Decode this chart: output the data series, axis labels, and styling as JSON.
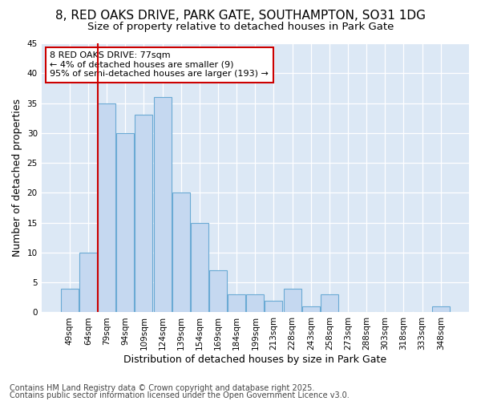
{
  "title_line1": "8, RED OAKS DRIVE, PARK GATE, SOUTHAMPTON, SO31 1DG",
  "title_line2": "Size of property relative to detached houses in Park Gate",
  "xlabel": "Distribution of detached houses by size in Park Gate",
  "ylabel": "Number of detached properties",
  "categories": [
    "49sqm",
    "64sqm",
    "79sqm",
    "94sqm",
    "109sqm",
    "124sqm",
    "139sqm",
    "154sqm",
    "169sqm",
    "184sqm",
    "199sqm",
    "213sqm",
    "228sqm",
    "243sqm",
    "258sqm",
    "273sqm",
    "288sqm",
    "303sqm",
    "318sqm",
    "333sqm",
    "348sqm"
  ],
  "values": [
    4,
    10,
    35,
    30,
    33,
    36,
    20,
    15,
    7,
    3,
    3,
    2,
    4,
    1,
    3,
    0,
    0,
    0,
    0,
    0,
    1
  ],
  "bar_color": "#c5d8f0",
  "bar_edge_color": "#6aaad4",
  "vline_x_index": 1.5,
  "vline_color": "#cc0000",
  "annotation_text": "8 RED OAKS DRIVE: 77sqm\n← 4% of detached houses are smaller (9)\n95% of semi-detached houses are larger (193) →",
  "annotation_box_color": "#ffffff",
  "annotation_box_edge": "#cc0000",
  "ylim": [
    0,
    45
  ],
  "yticks": [
    0,
    5,
    10,
    15,
    20,
    25,
    30,
    35,
    40,
    45
  ],
  "background_color": "#dce8f5",
  "fig_background": "#ffffff",
  "footer_line1": "Contains HM Land Registry data © Crown copyright and database right 2025.",
  "footer_line2": "Contains public sector information licensed under the Open Government Licence v3.0.",
  "title_fontsize": 11,
  "subtitle_fontsize": 9.5,
  "tick_fontsize": 7.5,
  "label_fontsize": 9,
  "footer_fontsize": 7,
  "annotation_fontsize": 8
}
